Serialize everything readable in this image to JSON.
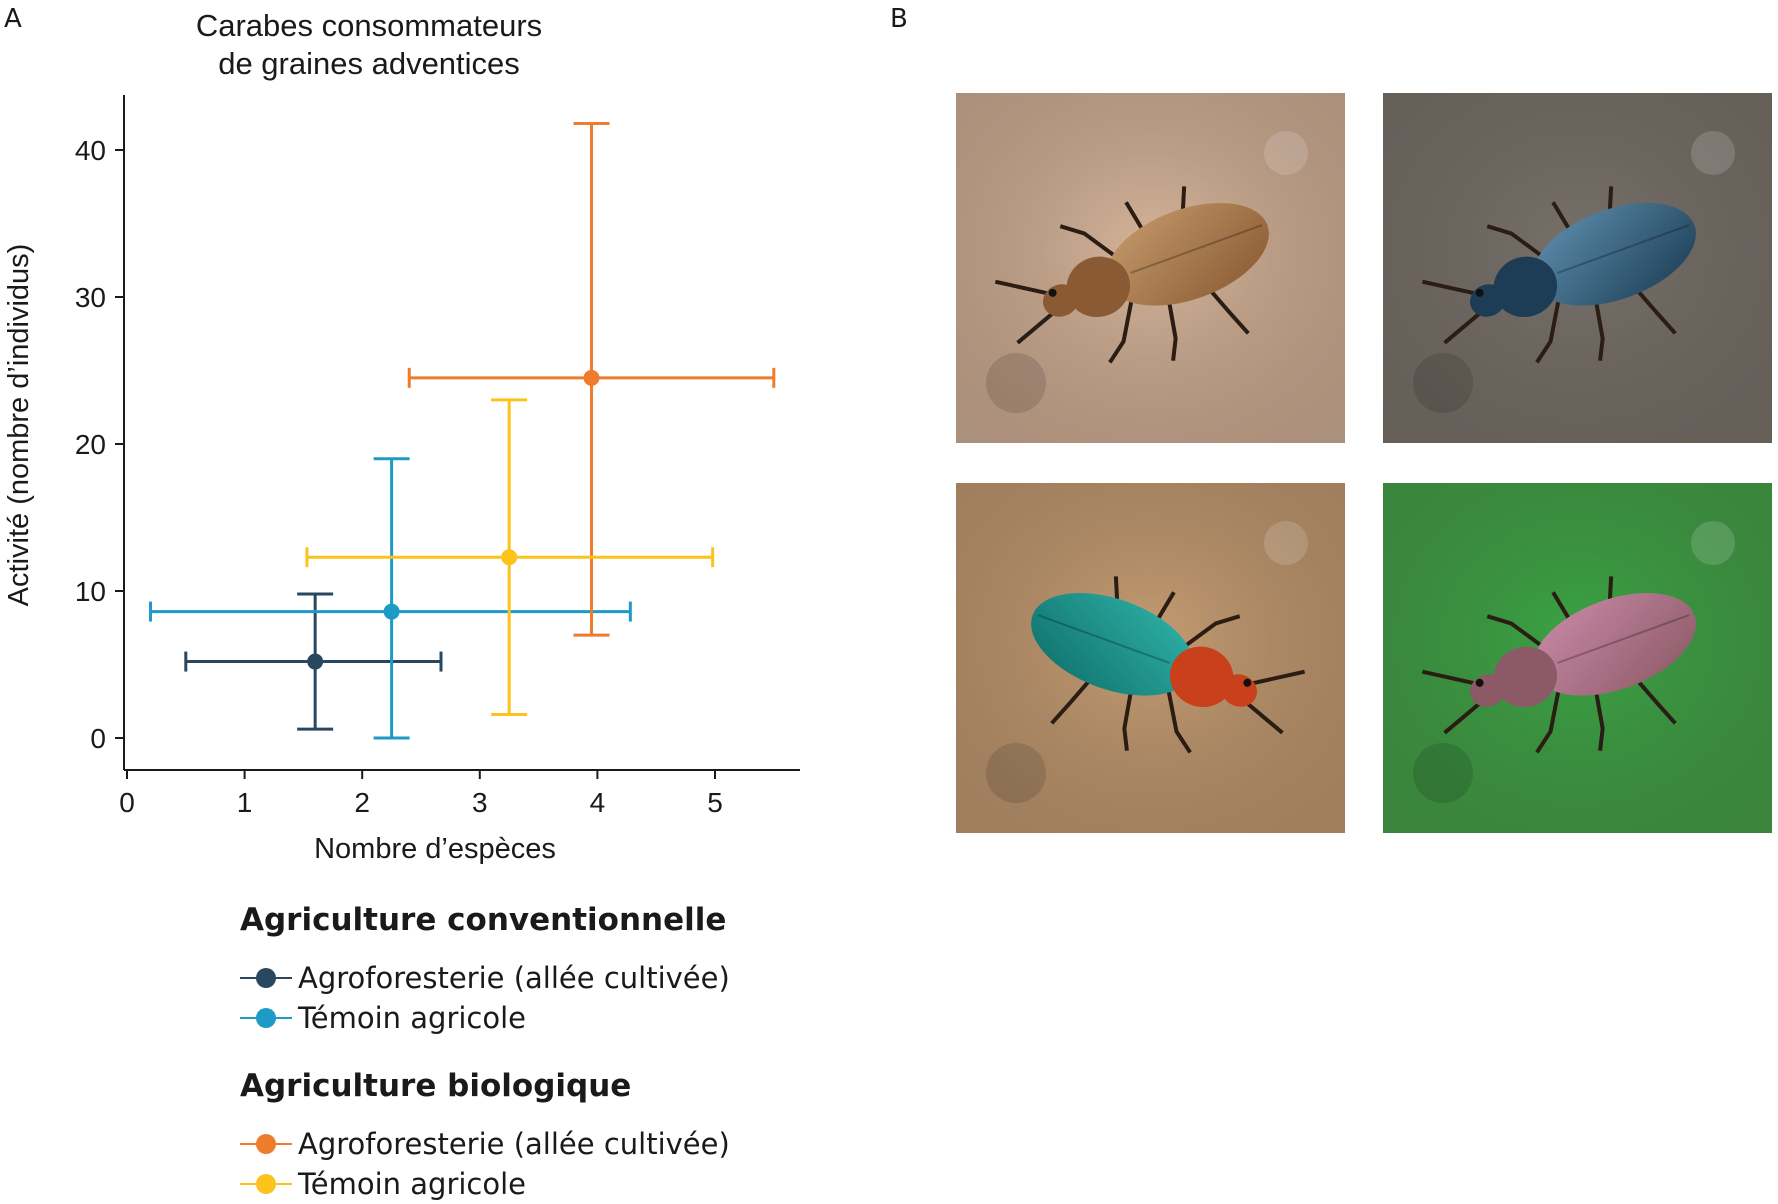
{
  "panel_labels": {
    "a": "A",
    "b": "B"
  },
  "chart_data": {
    "type": "scatter",
    "title": "Carabes consommateurs\nde graines adventices",
    "xlabel": "Nombre d’espèces",
    "ylabel": "Activité (nombre d’individus)",
    "xlim": [
      0,
      5.7
    ],
    "ylim": [
      -2,
      44
    ],
    "xticks": [
      0,
      1,
      2,
      3,
      4,
      5
    ],
    "yticks": [
      0,
      10,
      20,
      30,
      40
    ],
    "grid": false,
    "legend_position": "bottom",
    "series": [
      {
        "name": "Agroforesterie (allée cultivée)",
        "group": "Agriculture conventionnelle",
        "color": "#2a4760",
        "x": 1.6,
        "y": 5.2,
        "xerr": [
          0.5,
          2.67
        ],
        "yerr": [
          0.6,
          9.8
        ]
      },
      {
        "name": "Témoin agricole",
        "group": "Agriculture conventionnelle",
        "color": "#1e9ac6",
        "x": 2.25,
        "y": 8.6,
        "xerr": [
          0.2,
          4.28
        ],
        "yerr": [
          0.0,
          19.0
        ]
      },
      {
        "name": "Agroforesterie (allée cultivée)",
        "group": "Agriculture biologique",
        "color": "#ef7b2d",
        "x": 3.95,
        "y": 24.5,
        "xerr": [
          2.4,
          5.5
        ],
        "yerr": [
          7.0,
          41.8
        ]
      },
      {
        "name": "Témoin agricole",
        "group": "Agriculture biologique",
        "color": "#fcc31c",
        "x": 3.25,
        "y": 12.3,
        "xerr": [
          1.53,
          4.98
        ],
        "yerr": [
          1.6,
          23.0
        ]
      }
    ]
  },
  "legend": {
    "groups": [
      {
        "heading": "Agriculture conventionnelle",
        "items": [
          {
            "label": "Agroforesterie (allée cultivée)",
            "color": "#2a4760"
          },
          {
            "label": "Témoin agricole",
            "color": "#1e9ac6"
          }
        ]
      },
      {
        "heading": "Agriculture biologique",
        "items": [
          {
            "label": "Agroforesterie (allée cultivée)",
            "color": "#ef7b2d"
          },
          {
            "label": "Témoin agricole",
            "color": "#fcc31c"
          }
        ]
      }
    ]
  },
  "photos": [
    {
      "subject": "bronze-ground-beetle",
      "background": "#d6b49a",
      "body": "#8a5a34",
      "sheen": "#c49a6a"
    },
    {
      "subject": "blue-black-ground-beetle",
      "background": "#77716b",
      "body": "#1c3d55",
      "sheen": "#5e8fae"
    },
    {
      "subject": "green-red-ground-beetle",
      "background": "#c59c72",
      "body": "#0f6f6a",
      "sheen": "#2fb3a8",
      "head": "#c8401c"
    },
    {
      "subject": "iridescent-ground-beetle-on-leaf",
      "background": "#3aa444",
      "body": "#8c5a66",
      "sheen": "#c98aa8"
    }
  ]
}
